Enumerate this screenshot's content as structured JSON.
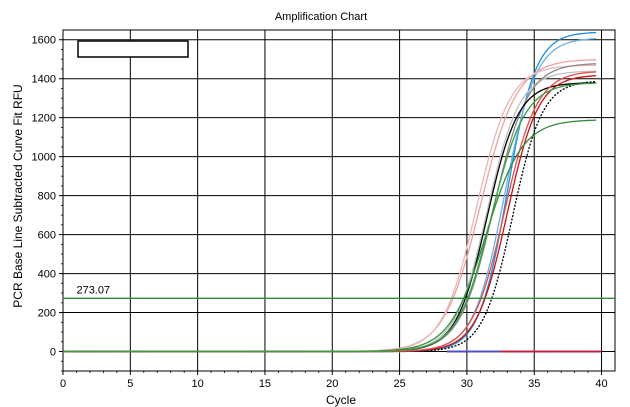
{
  "chart_data": {
    "type": "line",
    "title": "Amplification Chart",
    "xlabel": "Cycle",
    "ylabel": "PCR Base Line Subtracted Curve Fit RFU",
    "xlim": [
      0,
      41
    ],
    "ylim": [
      -100,
      1650
    ],
    "x_ticks": [
      0,
      5,
      10,
      15,
      20,
      25,
      30,
      35,
      40
    ],
    "y_ticks": [
      0,
      200,
      400,
      600,
      800,
      1000,
      1200,
      1400,
      1600
    ],
    "grid": true,
    "legend": "top-left (empty box)",
    "threshold": {
      "value": 273.07,
      "label": "273.07",
      "color": "#2e8b3a"
    },
    "curve_model": "sigmoid: value = max / (1 + exp(-(cycle - midpoint) / slope))",
    "series": [
      {
        "color": "#1a8fd8",
        "max": 1640,
        "midpoint": 33.0,
        "slope": 1.05,
        "dashed": false
      },
      {
        "color": "#6ab0e8",
        "max": 1610,
        "midpoint": 32.8,
        "slope": 1.15,
        "dashed": false
      },
      {
        "color": "#f0a0a0",
        "max": 1500,
        "midpoint": 31.0,
        "slope": 1.35,
        "dashed": false
      },
      {
        "color": "#e8b8b8",
        "max": 1470,
        "midpoint": 30.7,
        "slope": 1.25,
        "dashed": false
      },
      {
        "color": "#c0c0c0",
        "max": 1440,
        "midpoint": 31.5,
        "slope": 1.2,
        "dashed": false
      },
      {
        "color": "#888888",
        "max": 1480,
        "midpoint": 32.0,
        "slope": 1.25,
        "dashed": false
      },
      {
        "color": "#000000",
        "max": 1380,
        "midpoint": 31.5,
        "slope": 1.15,
        "dashed": false
      },
      {
        "color": "#000000",
        "max": 1390,
        "midpoint": 33.4,
        "slope": 1.1,
        "dashed": true
      },
      {
        "color": "#d01010",
        "max": 1420,
        "midpoint": 33.0,
        "slope": 1.15,
        "dashed": false
      },
      {
        "color": "#e05050",
        "max": 1440,
        "midpoint": 32.8,
        "slope": 1.2,
        "dashed": false
      },
      {
        "color": "#2e8b3a",
        "max": 1190,
        "midpoint": 31.4,
        "slope": 1.35,
        "dashed": false
      },
      {
        "color": "#3aa040",
        "max": 1380,
        "midpoint": 31.8,
        "slope": 1.25,
        "dashed": false
      }
    ],
    "baseline_marks": [
      {
        "x_from": 0.7,
        "x_to": 2.4,
        "color": "#000000"
      },
      {
        "x_from": 2.5,
        "x_to": 3.9,
        "color": "#2e8b3a"
      },
      {
        "x_from": 4.2,
        "x_to": 6.2,
        "color": "#3aa040"
      },
      {
        "x_from": 13.5,
        "x_to": 17.8,
        "color": "#c0204a"
      },
      {
        "x_from": 19.5,
        "x_to": 25.5,
        "color": "#e8b8b8"
      },
      {
        "x_from": 28.5,
        "x_to": 32.5,
        "color": "#5050c0"
      },
      {
        "x_from": 32.5,
        "x_to": 36.5,
        "color": "#c0204a"
      },
      {
        "x_from": 36.5,
        "x_to": 40.0,
        "color": "#c0204a"
      }
    ]
  }
}
